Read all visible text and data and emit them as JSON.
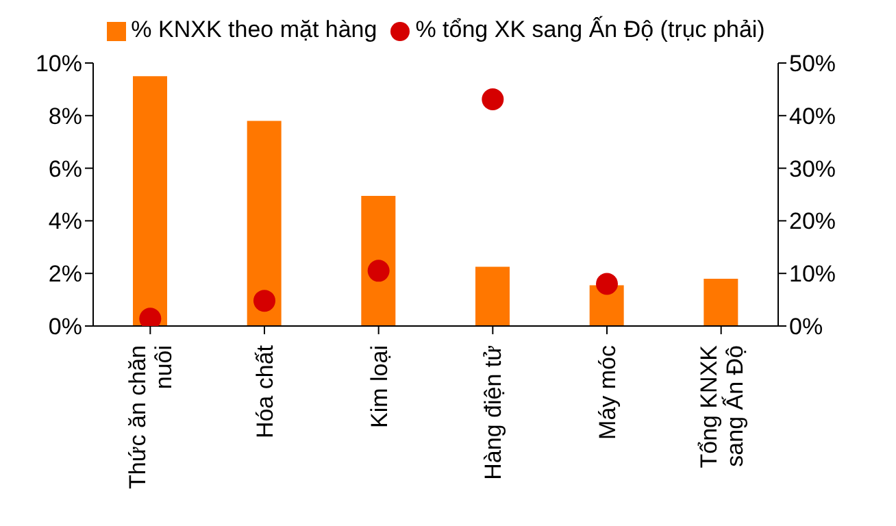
{
  "chart_data": {
    "type": "bar",
    "categories": [
      "Thức ăn chăn nuôi",
      "Hóa chất",
      "Kim loại",
      "Hàng điện tử",
      "Máy móc",
      "Tổng KNXK sang Ấn Độ"
    ],
    "series": [
      {
        "name": "% KNXK theo mặt hàng",
        "color": "#ff7700",
        "values": [
          9.5,
          7.8,
          4.95,
          2.25,
          1.55,
          1.8
        ]
      },
      {
        "name": "% tổng XK sang Ấn Độ (trục phải)",
        "type": "scatter",
        "axis": "y2",
        "color": "#d50000",
        "values": [
          1.4,
          4.8,
          10.5,
          43.1,
          8.0,
          null
        ]
      }
    ],
    "ylim": [
      0,
      10
    ],
    "yticks": [
      {
        "value": 0,
        "label": "0%"
      },
      {
        "value": 2,
        "label": "2%"
      },
      {
        "value": 4,
        "label": "4%"
      },
      {
        "value": 6,
        "label": "6%"
      },
      {
        "value": 8,
        "label": "8%"
      },
      {
        "value": 10,
        "label": "10%"
      }
    ],
    "y2lim": [
      0,
      50
    ],
    "y2ticks": [
      {
        "value": 0,
        "label": "0%"
      },
      {
        "value": 10,
        "label": "10%"
      },
      {
        "value": 20,
        "label": "20%"
      },
      {
        "value": 30,
        "label": "30%"
      },
      {
        "value": 40,
        "label": "40%"
      },
      {
        "value": 50,
        "label": "50%"
      }
    ],
    "legend": "top",
    "grid": false,
    "marker": "circle"
  }
}
